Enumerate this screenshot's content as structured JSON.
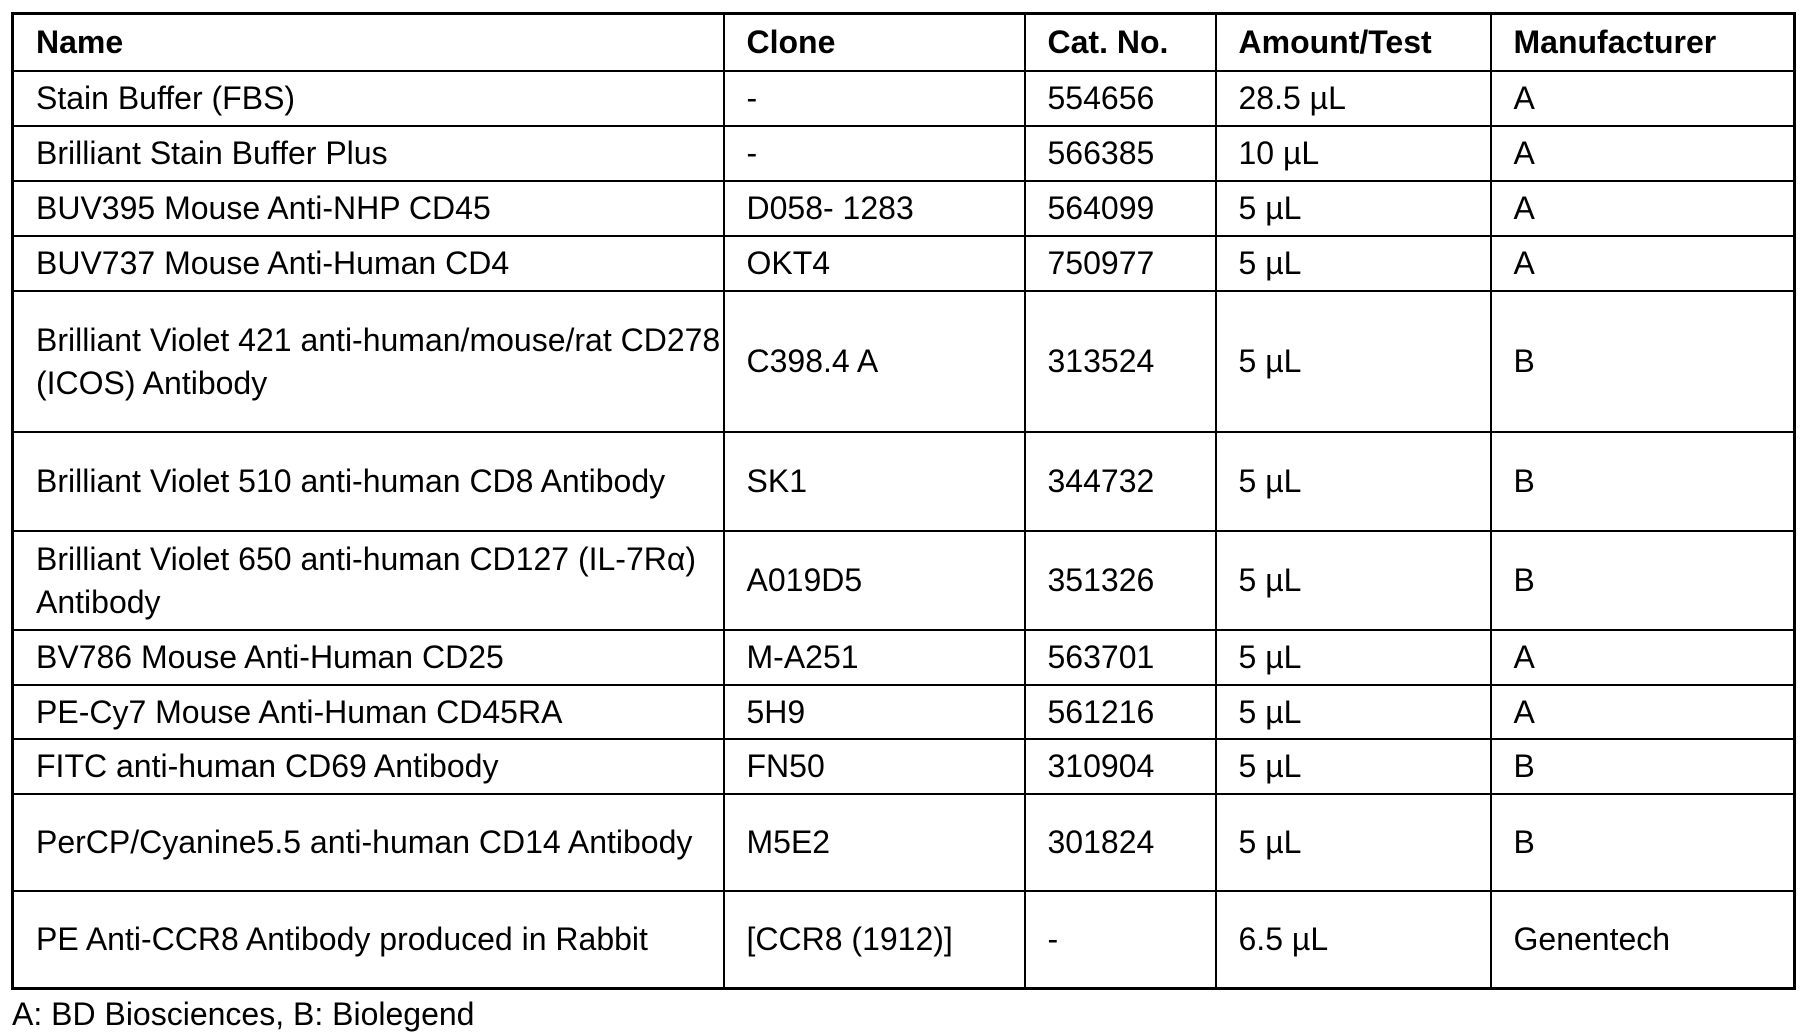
{
  "table": {
    "headers": [
      "Name",
      "Clone",
      "Cat. No.",
      "Amount/Test",
      "Manufacturer"
    ],
    "rows": [
      [
        "Stain Buffer (FBS)",
        "-",
        "554656",
        "28.5 µL",
        "A"
      ],
      [
        "Brilliant Stain Buffer Plus",
        "-",
        "566385",
        "10 µL",
        "A"
      ],
      [
        "BUV395 Mouse Anti-NHP CD45",
        "D058- 1283",
        "564099",
        "5 µL",
        "A"
      ],
      [
        "BUV737 Mouse Anti-Human CD4",
        "OKT4",
        "750977",
        "5 µL",
        "A"
      ],
      [
        "Brilliant Violet 421 anti-human/mouse/rat CD278 (ICOS) Antibody",
        "C398.4 A",
        "313524",
        "5 µL",
        "B"
      ],
      [
        "Brilliant Violet 510 anti-human CD8 Antibody",
        "SK1",
        "344732",
        "5 µL",
        "B"
      ],
      [
        "Brilliant Violet 650 anti-human CD127 (IL-7Rα) Antibody",
        "A019D5",
        "351326",
        "5 µL",
        "B"
      ],
      [
        "BV786 Mouse Anti-Human CD25",
        "M-A251",
        "563701",
        "5 µL",
        "A"
      ],
      [
        "PE-Cy7 Mouse Anti-Human CD45RA",
        "5H9",
        "561216",
        "5 µL",
        "A"
      ],
      [
        "FITC anti-human CD69 Antibody",
        "FN50",
        "310904",
        "5 µL",
        "B"
      ],
      [
        "PerCP/Cyanine5.5 anti-human CD14 Antibody",
        "M5E2",
        "301824",
        "5 µL",
        "B"
      ],
      [
        "PE Anti-CCR8 Antibody produced in Rabbit",
        "[CCR8 (1912)]",
        "-",
        "6.5 µL",
        "Genentech"
      ]
    ]
  },
  "footnote": "A: BD Biosciences, B: Biolegend"
}
